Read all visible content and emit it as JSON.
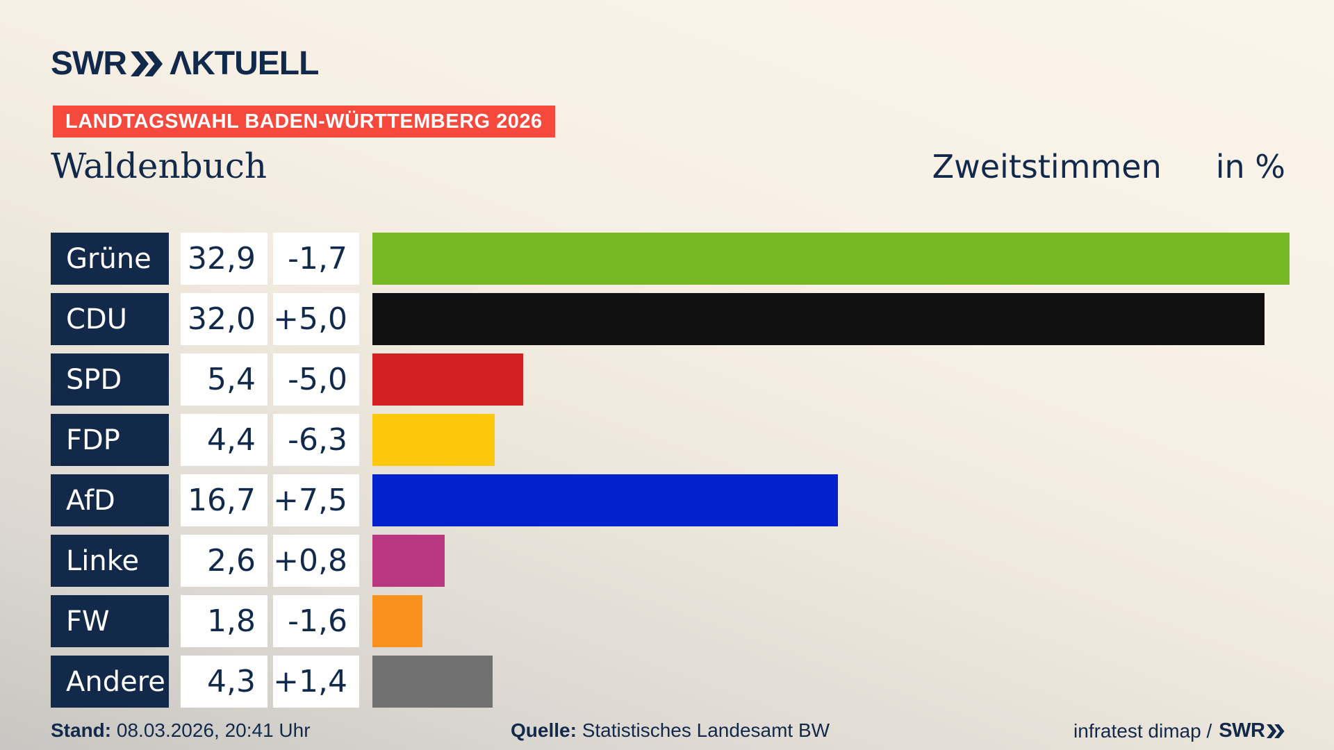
{
  "brand": {
    "swr": "SWR",
    "aktuell": "ΛKTUELL"
  },
  "badge": {
    "label": "LANDTAGSWAHL BADEN-WÜRTTEMBERG 2026",
    "background": "#f4493c"
  },
  "header": {
    "municipality": "Waldenbuch",
    "measure": "Zweitstimmen",
    "unit_label": "in %"
  },
  "chart_data": {
    "type": "bar",
    "orientation": "horizontal",
    "title": "Zweitstimmen in % — Waldenbuch, Landtagswahl Baden-Württemberg 2026",
    "unit": "percent",
    "value_axis_max": 32.9,
    "categories": [
      "Grüne",
      "CDU",
      "SPD",
      "FDP",
      "AfD",
      "Linke",
      "FW",
      "Andere"
    ],
    "values": [
      32.9,
      32.0,
      5.4,
      4.4,
      16.7,
      2.6,
      1.8,
      4.3
    ],
    "changes": [
      -1.7,
      5.0,
      -5.0,
      -6.3,
      7.5,
      0.8,
      -1.6,
      1.4
    ],
    "rows": [
      {
        "party": "Grüne",
        "value_label": "32,9",
        "change_label": "-1,7",
        "value": 32.9,
        "color": "#76b822"
      },
      {
        "party": "CDU",
        "value_label": "32,0",
        "change_label": "+5,0",
        "value": 32.0,
        "color": "#111111"
      },
      {
        "party": "SPD",
        "value_label": "5,4",
        "change_label": "-5,0",
        "value": 5.4,
        "color": "#d32121"
      },
      {
        "party": "FDP",
        "value_label": "4,4",
        "change_label": "-6,3",
        "value": 4.4,
        "color": "#fdc70a"
      },
      {
        "party": "AfD",
        "value_label": "16,7",
        "change_label": "+7,5",
        "value": 16.7,
        "color": "#0222cd"
      },
      {
        "party": "Linke",
        "value_label": "2,6",
        "change_label": "+0,8",
        "value": 2.6,
        "color": "#b93680"
      },
      {
        "party": "FW",
        "value_label": "1,8",
        "change_label": "-1,6",
        "value": 1.8,
        "color": "#f8911e"
      },
      {
        "party": "Andere",
        "value_label": "4,3",
        "change_label": "+1,4",
        "value": 4.3,
        "color": "#717171"
      }
    ]
  },
  "footer": {
    "stand_label": "Stand:",
    "stand_value": "08.03.2026, 20:41 Uhr",
    "quelle_label": "Quelle:",
    "quelle_value": "Statistisches Landesamt BW",
    "credit": "infratest dimap /",
    "credit_brand": "SWR"
  },
  "colors": {
    "navy": "#11294b",
    "label_box": "#12294a",
    "badge_red": "#f4493c",
    "box_white": "#ffffff"
  }
}
